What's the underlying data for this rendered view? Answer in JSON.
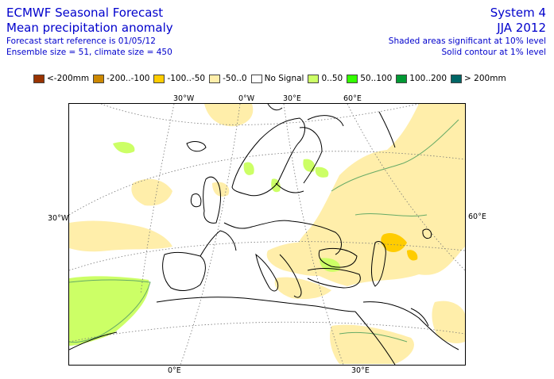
{
  "header": {
    "title_line1": "ECMWF Seasonal Forecast",
    "title_line2": "Mean precipitation anomaly",
    "info_line1": "Forecast start reference is 01/05/12",
    "info_line2": "Ensemble size = 51, climate size = 450",
    "system": "System 4",
    "season": "JJA 2012",
    "note_line1": "Shaded areas significant at 10% level",
    "note_line2": "Solid contour at 1% level"
  },
  "legend": [
    {
      "label": "<-200mm",
      "color": "#993300"
    },
    {
      "label": "-200..-100",
      "color": "#cc8800"
    },
    {
      "label": "-100..-50",
      "color": "#ffcc00"
    },
    {
      "label": "-50..0",
      "color": "#ffeeaa"
    },
    {
      "label": "No Signal",
      "color": "#ffffff"
    },
    {
      "label": "0..50",
      "color": "#ccff66"
    },
    {
      "label": "50..100",
      "color": "#33ff00"
    },
    {
      "label": "100..200",
      "color": "#009933"
    },
    {
      "label": "> 200mm",
      "color": "#006666"
    }
  ],
  "axis_labels": {
    "top_30w": "30°W",
    "top_0w": "0°W",
    "top_30e": "30°E",
    "top_60e": "60°E",
    "left_30w": "30°W",
    "right_60e": "60°E",
    "bottom_0e": "0°E",
    "bottom_30e": "30°E"
  },
  "colors": {
    "text": "#0000cc",
    "coast": "#000000",
    "significance_contour": "#66aa66",
    "graticule": "#777777"
  }
}
